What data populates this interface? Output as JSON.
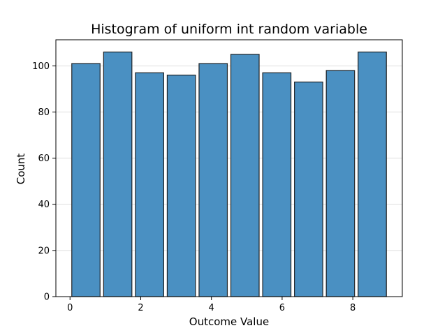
{
  "chart_data": {
    "type": "bar",
    "title": "Histogram of uniform int random variable",
    "xlabel": "Outcome Value",
    "ylabel": "Count",
    "bins": [
      {
        "start": 0.05,
        "end": 0.85,
        "count": 101
      },
      {
        "start": 0.95,
        "end": 1.75,
        "count": 106
      },
      {
        "start": 1.85,
        "end": 2.65,
        "count": 97
      },
      {
        "start": 2.75,
        "end": 3.55,
        "count": 96
      },
      {
        "start": 3.65,
        "end": 4.45,
        "count": 101
      },
      {
        "start": 4.55,
        "end": 5.35,
        "count": 105
      },
      {
        "start": 5.45,
        "end": 6.25,
        "count": 97
      },
      {
        "start": 6.35,
        "end": 7.15,
        "count": 93
      },
      {
        "start": 7.25,
        "end": 8.05,
        "count": 98
      },
      {
        "start": 8.15,
        "end": 8.95,
        "count": 106
      }
    ],
    "xlim": [
      -0.4,
      9.4
    ],
    "ylim": [
      0,
      111.3
    ],
    "xticks": [
      0,
      2,
      4,
      6,
      8
    ],
    "yticks": [
      0,
      20,
      40,
      60,
      80,
      100
    ],
    "grid": "horizontal",
    "colors": {
      "bar_fill": "#4a90c2",
      "bar_edge": "#1f2326",
      "grid": "#d3d3d3",
      "axis": "#000000"
    }
  }
}
